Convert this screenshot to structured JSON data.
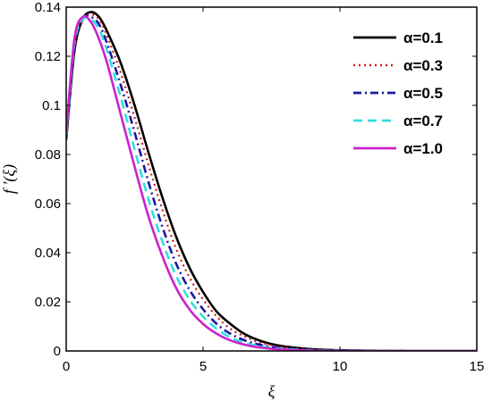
{
  "chart_data": {
    "type": "line",
    "title": "",
    "xlabel": "ξ",
    "ylabel": "f ′(ξ)",
    "xlim": [
      0,
      15
    ],
    "ylim": [
      0,
      0.14
    ],
    "x_ticks": [
      "0",
      "5",
      "10",
      "15"
    ],
    "y_ticks": [
      "0",
      "0.02",
      "0.04",
      "0.06",
      "0.08",
      "0.1",
      "0.12",
      "0.14"
    ],
    "grid": false,
    "legend_position": "top-right",
    "series": [
      {
        "name": "α=0.1",
        "color": "#000000",
        "dash": "solid",
        "x": [
          0,
          0.3,
          0.6,
          0.9,
          1.2,
          1.5,
          2,
          2.5,
          3,
          3.5,
          4,
          4.5,
          5,
          5.5,
          6,
          6.5,
          7,
          7.5,
          8,
          9,
          10,
          11,
          12,
          13,
          15
        ],
        "y": [
          0.086,
          0.122,
          0.135,
          0.138,
          0.136,
          0.13,
          0.117,
          0.1,
          0.081,
          0.063,
          0.047,
          0.034,
          0.024,
          0.016,
          0.011,
          0.007,
          0.0045,
          0.0028,
          0.0018,
          0.0007,
          0.0003,
          0.0001,
          5e-05,
          0,
          0
        ]
      },
      {
        "name": "α=0.3",
        "color": "#cc1a1a",
        "dash": "dotted",
        "x": [
          0,
          0.3,
          0.6,
          0.9,
          1.2,
          1.5,
          2,
          2.5,
          3,
          3.5,
          4,
          4.5,
          5,
          5.5,
          6,
          6.5,
          7,
          7.5,
          8,
          9,
          10,
          11,
          12,
          13,
          15
        ],
        "y": [
          0.086,
          0.123,
          0.135,
          0.137,
          0.135,
          0.128,
          0.113,
          0.095,
          0.076,
          0.058,
          0.042,
          0.03,
          0.021,
          0.014,
          0.009,
          0.006,
          0.0037,
          0.0023,
          0.0014,
          0.0005,
          0.0002,
          0.0001,
          0,
          0,
          0
        ]
      },
      {
        "name": "α=0.5",
        "color": "#1a1aa6",
        "dash": "dashdot",
        "x": [
          0,
          0.3,
          0.6,
          0.9,
          1.2,
          1.5,
          2,
          2.5,
          3,
          3.5,
          4,
          4.5,
          5,
          5.5,
          6,
          6.5,
          7,
          7.5,
          8,
          9,
          10,
          11,
          12,
          13,
          15
        ],
        "y": [
          0.087,
          0.124,
          0.135,
          0.136,
          0.133,
          0.125,
          0.108,
          0.089,
          0.069,
          0.051,
          0.036,
          0.025,
          0.017,
          0.011,
          0.007,
          0.0044,
          0.0027,
          0.0016,
          0.001,
          0.0004,
          0.0001,
          0,
          0,
          0,
          0
        ]
      },
      {
        "name": "α=0.7",
        "color": "#33dddd",
        "dash": "dashed",
        "x": [
          0,
          0.3,
          0.6,
          0.9,
          1.2,
          1.5,
          2,
          2.5,
          3,
          3.5,
          4,
          4.5,
          5,
          5.5,
          6,
          6.5,
          7,
          7.5,
          8,
          9,
          10,
          11,
          12,
          13,
          15
        ],
        "y": [
          0.088,
          0.125,
          0.135,
          0.135,
          0.131,
          0.122,
          0.103,
          0.082,
          0.062,
          0.045,
          0.031,
          0.021,
          0.014,
          0.009,
          0.0055,
          0.0034,
          0.002,
          0.0012,
          0.0007,
          0.0002,
          0.0001,
          0,
          0,
          0,
          0
        ]
      },
      {
        "name": "α=1.0",
        "color": "#cc22cc",
        "dash": "solid",
        "x": [
          0,
          0.3,
          0.6,
          0.9,
          1.2,
          1.5,
          2,
          2.5,
          3,
          3.5,
          4,
          4.5,
          5,
          5.5,
          6,
          6.5,
          7,
          7.5,
          8,
          9,
          10,
          11,
          12,
          13,
          15
        ],
        "y": [
          0.089,
          0.127,
          0.136,
          0.134,
          0.127,
          0.117,
          0.096,
          0.075,
          0.055,
          0.039,
          0.026,
          0.017,
          0.011,
          0.007,
          0.0043,
          0.0026,
          0.0015,
          0.0009,
          0.0005,
          0.0001,
          0,
          0,
          0,
          0,
          0
        ]
      }
    ]
  }
}
